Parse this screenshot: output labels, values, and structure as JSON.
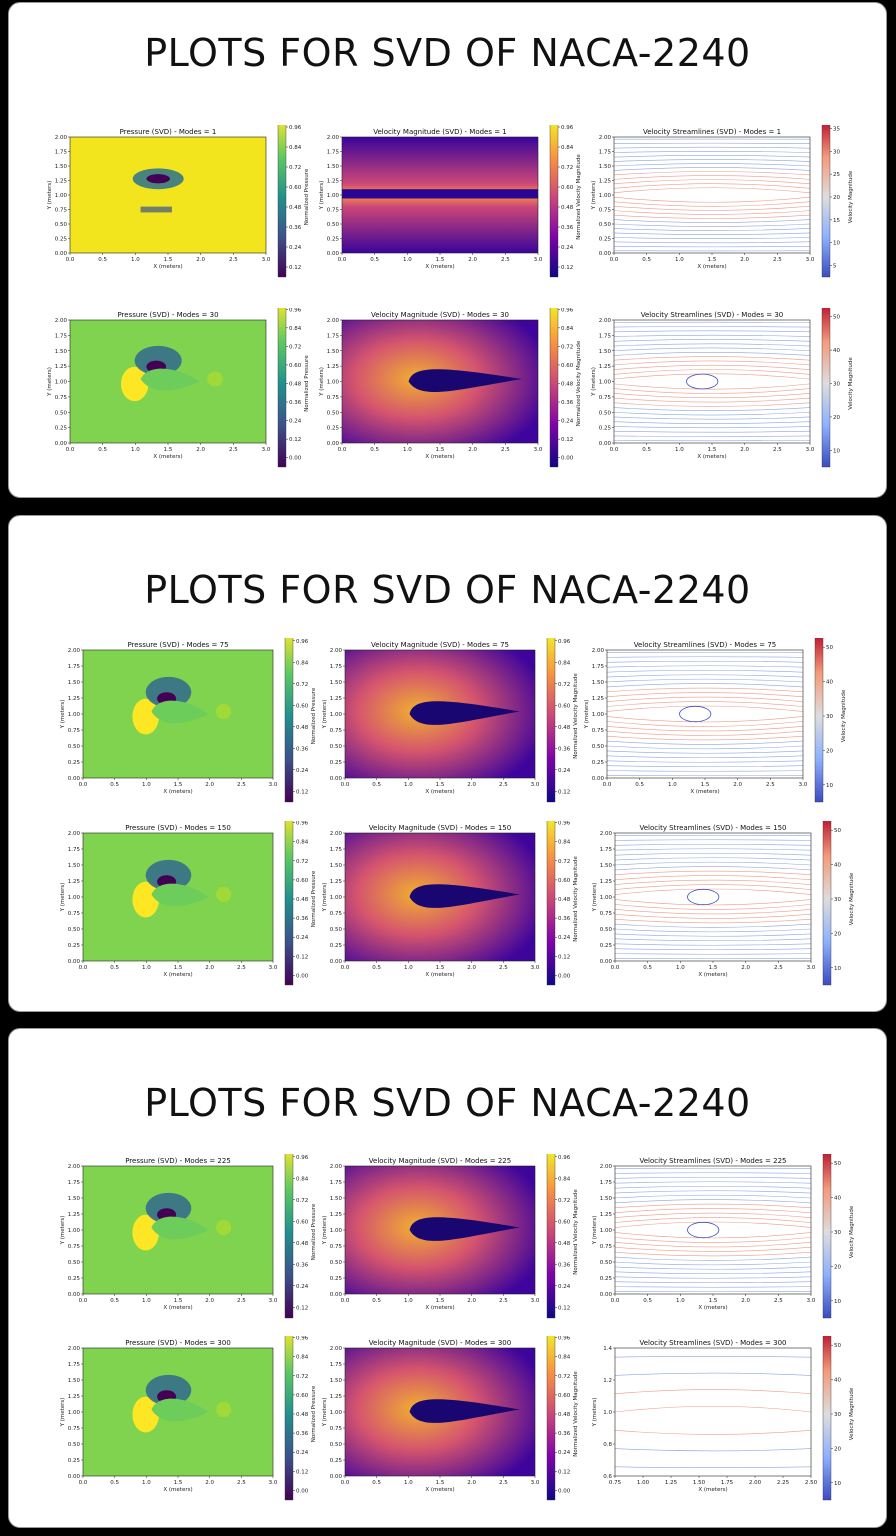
{
  "panels": [
    {
      "title": "PLOTS FOR SVD OF NACA-2240"
    },
    {
      "title": "PLOTS FOR SVD OF NACA-2240"
    },
    {
      "title": "PLOTS FOR SVD OF NACA-2240"
    }
  ],
  "colors": {
    "viridis_low": "#440154",
    "viridis_high": "#fde725",
    "plasma_low": "#0d0887",
    "plasma_high": "#f0f921",
    "coolwarm_low": "#3b4cc0",
    "coolwarm_high": "#b40426"
  },
  "chart_data": [
    {
      "type": "heatmap",
      "title": "Pressure (SVD) - Modes = 1",
      "xlabel": "X (meters)",
      "ylabel": "Y (meters)",
      "cbar_label": "Normalized Pressure",
      "cmap": "viridis",
      "xlim": [
        0,
        3
      ],
      "ylim": [
        0,
        2
      ],
      "xticks": [
        "0.0",
        "0.5",
        "1.0",
        "1.5",
        "2.0",
        "2.5",
        "3.0"
      ],
      "yticks": [
        "0.00",
        "0.25",
        "0.50",
        "0.75",
        "1.00",
        "1.25",
        "1.50",
        "1.75",
        "2.00"
      ],
      "cbar_ticks": [
        "0.12",
        "0.24",
        "0.36",
        "0.48",
        "0.60",
        "0.72",
        "0.84",
        "0.96"
      ],
      "mode": 1
    },
    {
      "type": "heatmap",
      "title": "Velocity Magnitude (SVD) - Modes = 1",
      "xlabel": "X (meters)",
      "ylabel": "Y (meters)",
      "cbar_label": "Normalized Velocity Magnitude",
      "cmap": "plasma",
      "xlim": [
        0,
        3
      ],
      "ylim": [
        0,
        2
      ],
      "xticks": [
        "0.0",
        "0.5",
        "1.0",
        "1.5",
        "2.0",
        "2.5",
        "3.0"
      ],
      "yticks": [
        "0.00",
        "0.25",
        "0.50",
        "0.75",
        "1.00",
        "1.25",
        "1.50",
        "1.75",
        "2.00"
      ],
      "cbar_ticks": [
        "0.12",
        "0.24",
        "0.36",
        "0.48",
        "0.60",
        "0.72",
        "0.84",
        "0.96"
      ],
      "mode": 1
    },
    {
      "type": "line",
      "title": "Velocity Streamlines (SVD) - Modes = 1",
      "xlabel": "X (meters)",
      "ylabel": "Y (meters)",
      "cbar_label": "Velocity Magnitude",
      "cmap": "coolwarm",
      "xlim": [
        0,
        3
      ],
      "ylim": [
        0,
        2
      ],
      "xticks": [
        "0.0",
        "0.5",
        "1.0",
        "1.5",
        "2.0",
        "2.5",
        "3.0"
      ],
      "yticks": [
        "0.00",
        "0.25",
        "0.50",
        "0.75",
        "1.00",
        "1.25",
        "1.50",
        "1.75",
        "2.00"
      ],
      "cbar_ticks": [
        "5",
        "10",
        "15",
        "20",
        "25",
        "30",
        "35"
      ],
      "mode": 1
    },
    {
      "type": "heatmap",
      "title": "Pressure (SVD) - Modes = 30",
      "xlabel": "X (meters)",
      "ylabel": "Y (meters)",
      "cbar_label": "Normalized Pressure",
      "cmap": "viridis",
      "xlim": [
        0,
        3
      ],
      "ylim": [
        0,
        2
      ],
      "xticks": [
        "0.0",
        "0.5",
        "1.0",
        "1.5",
        "2.0",
        "2.5",
        "3.0"
      ],
      "yticks": [
        "0.00",
        "0.25",
        "0.50",
        "0.75",
        "1.00",
        "1.25",
        "1.50",
        "1.75",
        "2.00"
      ],
      "cbar_ticks": [
        "0.00",
        "0.12",
        "0.24",
        "0.36",
        "0.48",
        "0.60",
        "0.72",
        "0.84",
        "0.96"
      ],
      "mode": 30
    },
    {
      "type": "heatmap",
      "title": "Velocity Magnitude (SVD) - Modes = 30",
      "xlabel": "X (meters)",
      "ylabel": "Y (meters)",
      "cbar_label": "Normalized Velocity Magnitude",
      "cmap": "plasma",
      "xlim": [
        0,
        3
      ],
      "ylim": [
        0,
        2
      ],
      "xticks": [
        "0.0",
        "0.5",
        "1.0",
        "1.5",
        "2.0",
        "2.5",
        "3.0"
      ],
      "yticks": [
        "0.00",
        "0.25",
        "0.50",
        "0.75",
        "1.00",
        "1.25",
        "1.50",
        "1.75",
        "2.00"
      ],
      "cbar_ticks": [
        "0.00",
        "0.12",
        "0.24",
        "0.36",
        "0.48",
        "0.60",
        "0.72",
        "0.84",
        "0.96"
      ],
      "mode": 30
    },
    {
      "type": "line",
      "title": "Velocity Streamlines (SVD) - Modes = 30",
      "xlabel": "X (meters)",
      "ylabel": "Y (meters)",
      "cbar_label": "Velocity Magnitude",
      "cmap": "coolwarm",
      "xlim": [
        0,
        3
      ],
      "ylim": [
        0,
        2
      ],
      "xticks": [
        "0.0",
        "0.5",
        "1.0",
        "1.5",
        "2.0",
        "2.5",
        "3.0"
      ],
      "yticks": [
        "0.00",
        "0.25",
        "0.50",
        "0.75",
        "1.00",
        "1.25",
        "1.50",
        "1.75",
        "2.00"
      ],
      "cbar_ticks": [
        "10",
        "20",
        "30",
        "40",
        "50"
      ],
      "mode": 30
    },
    {
      "type": "heatmap",
      "title": "Pressure (SVD) - Modes = 75",
      "xlabel": "X (meters)",
      "ylabel": "Y (meters)",
      "cbar_label": "Normalized Pressure",
      "cmap": "viridis",
      "xlim": [
        0,
        3
      ],
      "ylim": [
        0,
        2
      ],
      "xticks": [
        "0.0",
        "0.5",
        "1.0",
        "1.5",
        "2.0",
        "2.5",
        "3.0"
      ],
      "yticks": [
        "0.00",
        "0.25",
        "0.50",
        "0.75",
        "1.00",
        "1.25",
        "1.50",
        "1.75",
        "2.00"
      ],
      "cbar_ticks": [
        "0.12",
        "0.24",
        "0.36",
        "0.48",
        "0.60",
        "0.72",
        "0.84",
        "0.96"
      ],
      "mode": 75
    },
    {
      "type": "heatmap",
      "title": "Velocity Magnitude (SVD) - Modes = 75",
      "xlabel": "X (meters)",
      "ylabel": "Y (meters)",
      "cbar_label": "Normalized Velocity Magnitude",
      "cmap": "plasma",
      "xlim": [
        0,
        3
      ],
      "ylim": [
        0,
        2
      ],
      "xticks": [
        "0.0",
        "0.5",
        "1.0",
        "1.5",
        "2.0",
        "2.5",
        "3.0"
      ],
      "yticks": [
        "0.00",
        "0.25",
        "0.50",
        "0.75",
        "1.00",
        "1.25",
        "1.50",
        "1.75",
        "2.00"
      ],
      "cbar_ticks": [
        "0.12",
        "0.24",
        "0.36",
        "0.48",
        "0.60",
        "0.72",
        "0.84",
        "0.96"
      ],
      "mode": 75
    },
    {
      "type": "line",
      "title": "Velocity Streamlines (SVD) - Modes = 75",
      "xlabel": "X (meters)",
      "ylabel": "Y (meters)",
      "cbar_label": "Velocity Magnitude",
      "cmap": "coolwarm",
      "xlim": [
        0,
        3
      ],
      "ylim": [
        0,
        2
      ],
      "xticks": [
        "0.0",
        "0.5",
        "1.0",
        "1.5",
        "2.0",
        "2.5",
        "3.0"
      ],
      "yticks": [
        "0.00",
        "0.25",
        "0.50",
        "0.75",
        "1.00",
        "1.25",
        "1.50",
        "1.75",
        "2.00"
      ],
      "cbar_ticks": [
        "10",
        "20",
        "30",
        "40",
        "50"
      ],
      "mode": 75
    },
    {
      "type": "heatmap",
      "title": "Pressure (SVD) - Modes = 150",
      "xlabel": "X (meters)",
      "ylabel": "Y (meters)",
      "cbar_label": "Normalized Pressure",
      "cmap": "viridis",
      "xlim": [
        0,
        3
      ],
      "ylim": [
        0,
        2
      ],
      "xticks": [
        "0.0",
        "0.5",
        "1.0",
        "1.5",
        "2.0",
        "2.5",
        "3.0"
      ],
      "yticks": [
        "0.00",
        "0.25",
        "0.50",
        "0.75",
        "1.00",
        "1.25",
        "1.50",
        "1.75",
        "2.00"
      ],
      "cbar_ticks": [
        "0.00",
        "0.12",
        "0.24",
        "0.36",
        "0.48",
        "0.60",
        "0.72",
        "0.84",
        "0.96"
      ],
      "mode": 150
    },
    {
      "type": "heatmap",
      "title": "Velocity Magnitude (SVD) - Modes = 150",
      "xlabel": "X (meters)",
      "ylabel": "Y (meters)",
      "cbar_label": "Normalized Velocity Magnitude",
      "cmap": "plasma",
      "xlim": [
        0,
        3
      ],
      "ylim": [
        0,
        2
      ],
      "xticks": [
        "0.0",
        "0.5",
        "1.0",
        "1.5",
        "2.0",
        "2.5",
        "3.0"
      ],
      "yticks": [
        "0.00",
        "0.25",
        "0.50",
        "0.75",
        "1.00",
        "1.25",
        "1.50",
        "1.75",
        "2.00"
      ],
      "cbar_ticks": [
        "0.00",
        "0.12",
        "0.24",
        "0.36",
        "0.48",
        "0.60",
        "0.72",
        "0.84",
        "0.96"
      ],
      "mode": 150
    },
    {
      "type": "line",
      "title": "Velocity Streamlines (SVD) - Modes = 150",
      "xlabel": "X (meters)",
      "ylabel": "Y (meters)",
      "cbar_label": "Velocity Magnitude",
      "cmap": "coolwarm",
      "xlim": [
        0,
        3
      ],
      "ylim": [
        0,
        2
      ],
      "xticks": [
        "0.0",
        "0.5",
        "1.0",
        "1.5",
        "2.0",
        "2.5",
        "3.0"
      ],
      "yticks": [
        "0.00",
        "0.25",
        "0.50",
        "0.75",
        "1.00",
        "1.25",
        "1.50",
        "1.75",
        "2.00"
      ],
      "cbar_ticks": [
        "10",
        "20",
        "30",
        "40",
        "50"
      ],
      "mode": 150
    },
    {
      "type": "heatmap",
      "title": "Pressure (SVD) - Modes = 225",
      "xlabel": "X (meters)",
      "ylabel": "Y (meters)",
      "cbar_label": "Normalized Pressure",
      "cmap": "viridis",
      "xlim": [
        0,
        3
      ],
      "ylim": [
        0,
        2
      ],
      "xticks": [
        "0.0",
        "0.5",
        "1.0",
        "1.5",
        "2.0",
        "2.5",
        "3.0"
      ],
      "yticks": [
        "0.00",
        "0.25",
        "0.50",
        "0.75",
        "1.00",
        "1.25",
        "1.50",
        "1.75",
        "2.00"
      ],
      "cbar_ticks": [
        "0.12",
        "0.24",
        "0.36",
        "0.48",
        "0.60",
        "0.72",
        "0.84",
        "0.96"
      ],
      "mode": 225
    },
    {
      "type": "heatmap",
      "title": "Velocity Magnitude (SVD) - Modes = 225",
      "xlabel": "X (meters)",
      "ylabel": "Y (meters)",
      "cbar_label": "Normalized Velocity Magnitude",
      "cmap": "plasma",
      "xlim": [
        0,
        3
      ],
      "ylim": [
        0,
        2
      ],
      "xticks": [
        "0.0",
        "0.5",
        "1.0",
        "1.5",
        "2.0",
        "2.5",
        "3.0"
      ],
      "yticks": [
        "0.00",
        "0.25",
        "0.50",
        "0.75",
        "1.00",
        "1.25",
        "1.50",
        "1.75",
        "2.00"
      ],
      "cbar_ticks": [
        "0.12",
        "0.24",
        "0.36",
        "0.48",
        "0.60",
        "0.72",
        "0.84",
        "0.96"
      ],
      "mode": 225
    },
    {
      "type": "line",
      "title": "Velocity Streamlines (SVD) - Modes = 225",
      "xlabel": "X (meters)",
      "ylabel": "Y (meters)",
      "cbar_label": "Velocity Magnitude",
      "cmap": "coolwarm",
      "xlim": [
        0,
        3
      ],
      "ylim": [
        0,
        2
      ],
      "xticks": [
        "0.0",
        "0.5",
        "1.0",
        "1.5",
        "2.0",
        "2.5",
        "3.0"
      ],
      "yticks": [
        "0.00",
        "0.25",
        "0.50",
        "0.75",
        "1.00",
        "1.25",
        "1.50",
        "1.75",
        "2.00"
      ],
      "cbar_ticks": [
        "10",
        "20",
        "30",
        "40",
        "50"
      ],
      "mode": 225
    },
    {
      "type": "heatmap",
      "title": "Pressure (SVD) - Modes = 300",
      "xlabel": "X (meters)",
      "ylabel": "Y (meters)",
      "cbar_label": "Normalized Pressure",
      "cmap": "viridis",
      "xlim": [
        0,
        3
      ],
      "ylim": [
        0,
        2
      ],
      "xticks": [
        "0.0",
        "0.5",
        "1.0",
        "1.5",
        "2.0",
        "2.5",
        "3.0"
      ],
      "yticks": [
        "0.00",
        "0.25",
        "0.50",
        "0.75",
        "1.00",
        "1.25",
        "1.50",
        "1.75",
        "2.00"
      ],
      "cbar_ticks": [
        "0.00",
        "0.12",
        "0.24",
        "0.36",
        "0.48",
        "0.60",
        "0.72",
        "0.84",
        "0.96"
      ],
      "mode": 300
    },
    {
      "type": "heatmap",
      "title": "Velocity Magnitude (SVD) - Modes = 300",
      "xlabel": "X (meters)",
      "ylabel": "Y (meters)",
      "cbar_label": "Normalized Velocity Magnitude",
      "cmap": "plasma",
      "xlim": [
        0,
        3
      ],
      "ylim": [
        0,
        2
      ],
      "xticks": [
        "0.0",
        "0.5",
        "1.0",
        "1.5",
        "2.0",
        "2.5",
        "3.0"
      ],
      "yticks": [
        "0.00",
        "0.25",
        "0.50",
        "0.75",
        "1.00",
        "1.25",
        "1.50",
        "1.75",
        "2.00"
      ],
      "cbar_ticks": [
        "0.00",
        "0.12",
        "0.24",
        "0.36",
        "0.48",
        "0.60",
        "0.72",
        "0.84",
        "0.96"
      ],
      "mode": 300
    },
    {
      "type": "line",
      "title": "Velocity Streamlines (SVD) - Modes = 300",
      "xlabel": "X (meters)",
      "ylabel": "Y (meters)",
      "cbar_label": "Velocity Magnitude",
      "cmap": "coolwarm",
      "xlim": [
        0.6,
        2.5
      ],
      "ylim": [
        0.6,
        1.4
      ],
      "xticks": [
        "0.75",
        "1.00",
        "1.25",
        "1.50",
        "1.75",
        "2.00",
        "2.25",
        "2.50"
      ],
      "yticks": [
        "0.6",
        "0.8",
        "1.0",
        "1.2",
        "1.4"
      ],
      "cbar_ticks": [
        "10",
        "20",
        "30",
        "40",
        "50"
      ],
      "mode": 300
    }
  ]
}
